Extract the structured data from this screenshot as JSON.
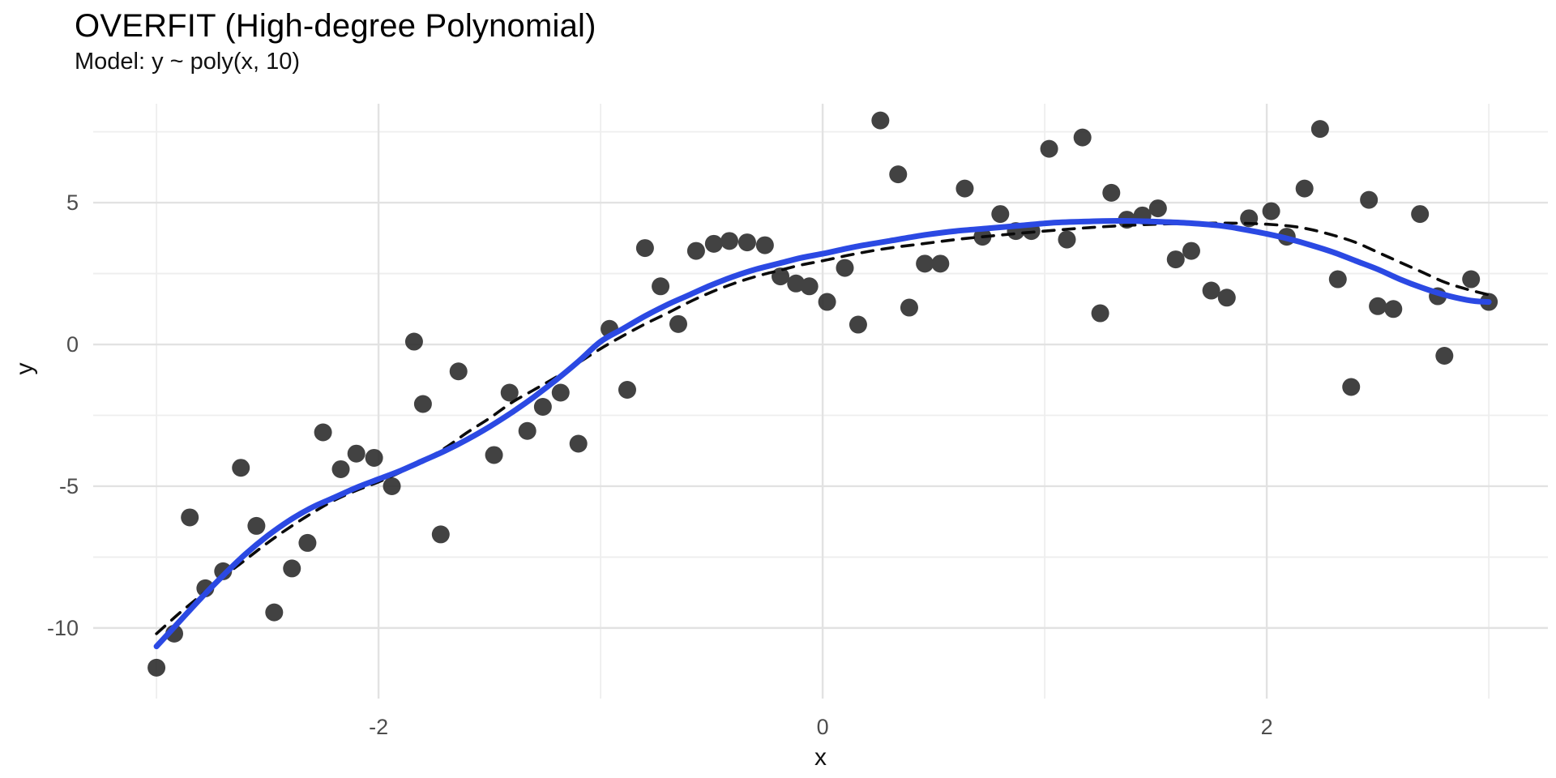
{
  "chart_data": {
    "type": "scatter",
    "title": "OVERFIT (High-degree Polynomial)",
    "subtitle": "Model: y ~ poly(x, 10)",
    "xlabel": "x",
    "ylabel": "y",
    "grid": true,
    "legend": "none",
    "xlim": [
      -3.285,
      3.266
    ],
    "ylim": [
      -12.49,
      8.49
    ],
    "x_major_ticks": {
      "values": [
        -2,
        0,
        2
      ],
      "labels": [
        "-2",
        "0",
        "2"
      ]
    },
    "x_minor_ticks": [
      -3,
      -1,
      1,
      3
    ],
    "y_major_ticks": {
      "values": [
        5,
        0,
        -5,
        -10
      ],
      "labels": [
        "5",
        "0",
        "-5",
        "-10"
      ]
    },
    "y_minor_ticks": [
      7.5,
      2.5,
      -2.5,
      -7.5
    ],
    "points": [
      [
        -3.0,
        -11.4
      ],
      [
        -2.92,
        -10.2
      ],
      [
        -2.85,
        -6.1
      ],
      [
        -2.78,
        -8.6
      ],
      [
        -2.7,
        -8.0
      ],
      [
        -2.62,
        -4.35
      ],
      [
        -2.55,
        -6.4
      ],
      [
        -2.47,
        -9.45
      ],
      [
        -2.39,
        -7.9
      ],
      [
        -2.32,
        -7.0
      ],
      [
        -2.25,
        -3.1
      ],
      [
        -2.17,
        -4.4
      ],
      [
        -2.1,
        -3.85
      ],
      [
        -2.02,
        -4.0
      ],
      [
        -1.94,
        -5.0
      ],
      [
        -1.84,
        0.1
      ],
      [
        -1.8,
        -2.1
      ],
      [
        -1.72,
        -6.7
      ],
      [
        -1.64,
        -0.95
      ],
      [
        -1.48,
        -3.9
      ],
      [
        -1.41,
        -1.7
      ],
      [
        -1.33,
        -3.05
      ],
      [
        -1.26,
        -2.2
      ],
      [
        -1.18,
        -1.7
      ],
      [
        -1.1,
        -3.5
      ],
      [
        -0.96,
        0.55
      ],
      [
        -0.88,
        -1.6
      ],
      [
        -0.8,
        3.4
      ],
      [
        -0.73,
        2.05
      ],
      [
        -0.65,
        0.72
      ],
      [
        -0.57,
        3.3
      ],
      [
        -0.49,
        3.55
      ],
      [
        -0.42,
        3.65
      ],
      [
        -0.34,
        3.6
      ],
      [
        -0.26,
        3.5
      ],
      [
        -0.19,
        2.4
      ],
      [
        -0.12,
        2.15
      ],
      [
        -0.06,
        2.05
      ],
      [
        0.02,
        1.5
      ],
      [
        0.1,
        2.7
      ],
      [
        0.16,
        0.7
      ],
      [
        0.26,
        7.9
      ],
      [
        0.34,
        6.0
      ],
      [
        0.39,
        1.3
      ],
      [
        0.46,
        2.85
      ],
      [
        0.53,
        2.85
      ],
      [
        0.64,
        5.5
      ],
      [
        0.72,
        3.8
      ],
      [
        0.8,
        4.6
      ],
      [
        0.87,
        4.0
      ],
      [
        0.94,
        4.0
      ],
      [
        1.02,
        6.9
      ],
      [
        1.1,
        3.7
      ],
      [
        1.17,
        7.3
      ],
      [
        1.25,
        1.1
      ],
      [
        1.3,
        5.35
      ],
      [
        1.37,
        4.4
      ],
      [
        1.44,
        4.55
      ],
      [
        1.51,
        4.8
      ],
      [
        1.59,
        3.0
      ],
      [
        1.66,
        3.3
      ],
      [
        1.75,
        1.9
      ],
      [
        1.82,
        1.65
      ],
      [
        1.92,
        4.45
      ],
      [
        2.02,
        4.7
      ],
      [
        2.09,
        3.8
      ],
      [
        2.17,
        5.5
      ],
      [
        2.24,
        7.6
      ],
      [
        2.32,
        2.3
      ],
      [
        2.38,
        -1.5
      ],
      [
        2.46,
        5.1
      ],
      [
        2.5,
        1.35
      ],
      [
        2.57,
        1.25
      ],
      [
        2.69,
        4.6
      ],
      [
        2.77,
        1.7
      ],
      [
        2.8,
        -0.4
      ],
      [
        2.92,
        2.3
      ],
      [
        3.0,
        1.5
      ]
    ],
    "point_style": {
      "color": "#2e2e2e",
      "radius": 11,
      "opacity": 0.9
    },
    "series": [
      {
        "name": "true-function-dashed",
        "color": "#0b0b0b",
        "style": "dashed",
        "width": 3.6,
        "points": [
          [
            -3.0,
            -10.2
          ],
          [
            -2.9,
            -9.5
          ],
          [
            -2.8,
            -8.85
          ],
          [
            -2.7,
            -8.2
          ],
          [
            -2.6,
            -7.6
          ],
          [
            -2.5,
            -7.0
          ],
          [
            -2.4,
            -6.45
          ],
          [
            -2.3,
            -5.95
          ],
          [
            -2.2,
            -5.5
          ],
          [
            -2.1,
            -5.15
          ],
          [
            -2.0,
            -4.85
          ],
          [
            -1.9,
            -4.5
          ],
          [
            -1.8,
            -4.1
          ],
          [
            -1.7,
            -3.65
          ],
          [
            -1.6,
            -3.1
          ],
          [
            -1.5,
            -2.6
          ],
          [
            -1.4,
            -2.05
          ],
          [
            -1.3,
            -1.6
          ],
          [
            -1.2,
            -1.15
          ],
          [
            -1.1,
            -0.65
          ],
          [
            -1.0,
            -0.15
          ],
          [
            -0.9,
            0.3
          ],
          [
            -0.8,
            0.72
          ],
          [
            -0.7,
            1.1
          ],
          [
            -0.6,
            1.5
          ],
          [
            -0.5,
            1.85
          ],
          [
            -0.4,
            2.15
          ],
          [
            -0.3,
            2.4
          ],
          [
            -0.2,
            2.6
          ],
          [
            -0.1,
            2.8
          ],
          [
            0.0,
            2.95
          ],
          [
            0.15,
            3.2
          ],
          [
            0.3,
            3.4
          ],
          [
            0.45,
            3.55
          ],
          [
            0.6,
            3.7
          ],
          [
            0.75,
            3.82
          ],
          [
            0.9,
            3.93
          ],
          [
            1.05,
            4.03
          ],
          [
            1.2,
            4.12
          ],
          [
            1.35,
            4.19
          ],
          [
            1.5,
            4.24
          ],
          [
            1.65,
            4.27
          ],
          [
            1.8,
            4.28
          ],
          [
            1.95,
            4.26
          ],
          [
            2.1,
            4.18
          ],
          [
            2.2,
            4.05
          ],
          [
            2.3,
            3.85
          ],
          [
            2.4,
            3.6
          ],
          [
            2.5,
            3.25
          ],
          [
            2.6,
            2.9
          ],
          [
            2.7,
            2.55
          ],
          [
            2.8,
            2.2
          ],
          [
            2.9,
            1.95
          ],
          [
            3.0,
            1.75
          ]
        ]
      },
      {
        "name": "overfit-smooth-poly10",
        "color": "#2b49e3",
        "style": "solid",
        "width": 7,
        "points": [
          [
            -3.0,
            -10.65
          ],
          [
            -2.9,
            -9.8
          ],
          [
            -2.8,
            -8.95
          ],
          [
            -2.7,
            -8.15
          ],
          [
            -2.6,
            -7.4
          ],
          [
            -2.5,
            -6.75
          ],
          [
            -2.4,
            -6.2
          ],
          [
            -2.3,
            -5.75
          ],
          [
            -2.2,
            -5.4
          ],
          [
            -2.1,
            -5.05
          ],
          [
            -2.0,
            -4.75
          ],
          [
            -1.9,
            -4.45
          ],
          [
            -1.8,
            -4.1
          ],
          [
            -1.7,
            -3.75
          ],
          [
            -1.6,
            -3.35
          ],
          [
            -1.5,
            -2.9
          ],
          [
            -1.4,
            -2.4
          ],
          [
            -1.3,
            -1.85
          ],
          [
            -1.2,
            -1.25
          ],
          [
            -1.1,
            -0.6
          ],
          [
            -1.0,
            0.1
          ],
          [
            -0.9,
            0.55
          ],
          [
            -0.8,
            1.0
          ],
          [
            -0.7,
            1.4
          ],
          [
            -0.6,
            1.75
          ],
          [
            -0.5,
            2.1
          ],
          [
            -0.4,
            2.4
          ],
          [
            -0.3,
            2.65
          ],
          [
            -0.2,
            2.85
          ],
          [
            -0.1,
            3.05
          ],
          [
            0.0,
            3.2
          ],
          [
            0.15,
            3.45
          ],
          [
            0.3,
            3.65
          ],
          [
            0.45,
            3.85
          ],
          [
            0.6,
            4.0
          ],
          [
            0.75,
            4.1
          ],
          [
            0.9,
            4.2
          ],
          [
            1.05,
            4.3
          ],
          [
            1.2,
            4.34
          ],
          [
            1.35,
            4.36
          ],
          [
            1.5,
            4.33
          ],
          [
            1.65,
            4.28
          ],
          [
            1.8,
            4.18
          ],
          [
            1.9,
            4.05
          ],
          [
            2.0,
            3.9
          ],
          [
            2.1,
            3.72
          ],
          [
            2.2,
            3.5
          ],
          [
            2.3,
            3.25
          ],
          [
            2.4,
            2.95
          ],
          [
            2.5,
            2.65
          ],
          [
            2.6,
            2.3
          ],
          [
            2.7,
            2.0
          ],
          [
            2.8,
            1.75
          ],
          [
            2.9,
            1.57
          ],
          [
            2.95,
            1.52
          ],
          [
            3.0,
            1.5
          ]
        ]
      }
    ],
    "colors": {
      "background": "#ffffff",
      "grid_major": "#e2e2e2",
      "grid_minor": "#eeeeee",
      "tick_text": "#4d4d4d",
      "axis_title": "#111111",
      "title_text": "#000000"
    }
  }
}
